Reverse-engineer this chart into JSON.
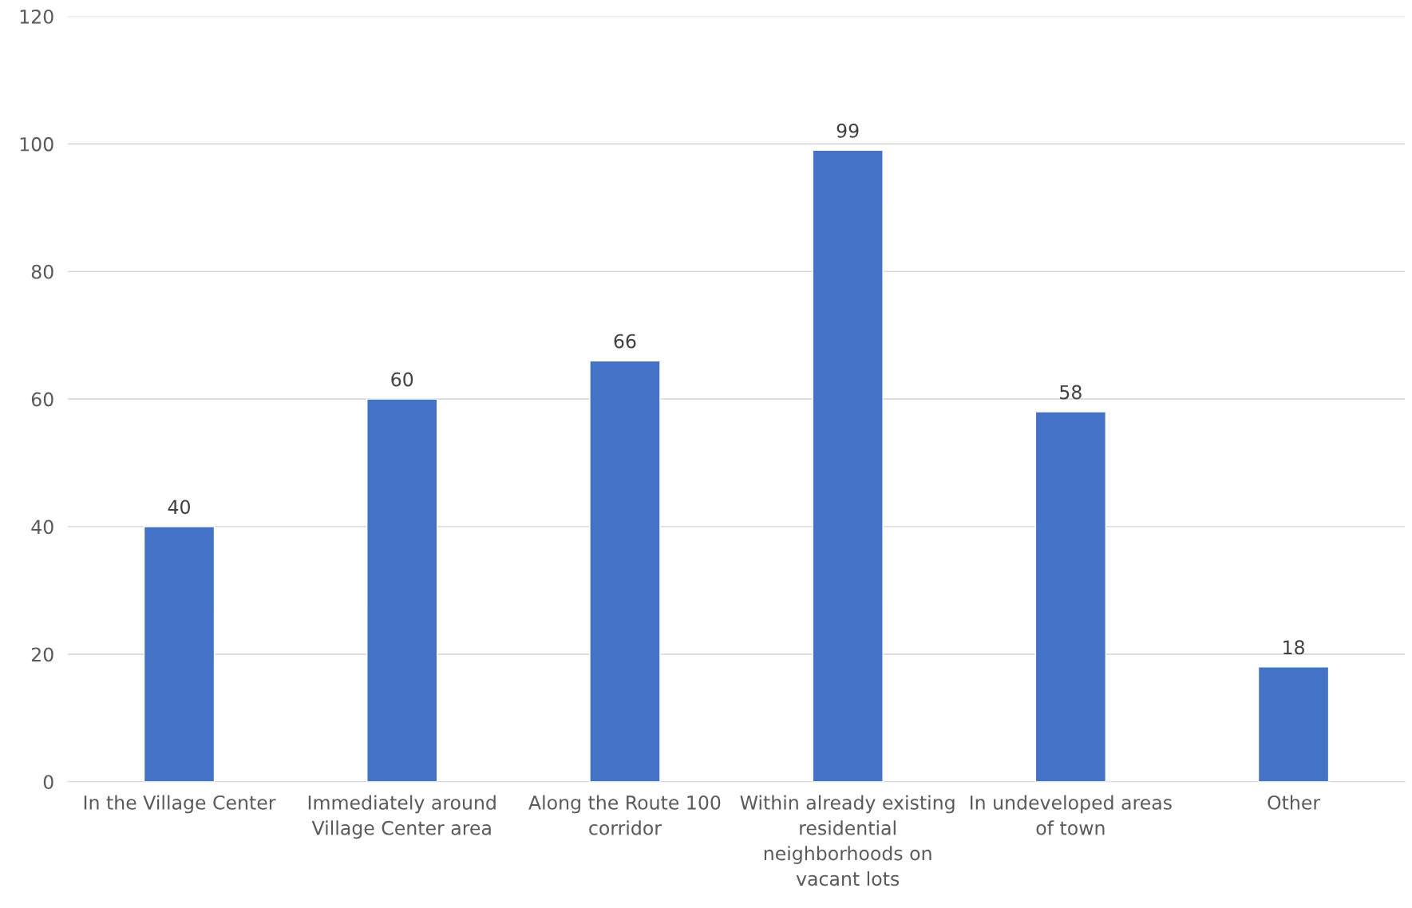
{
  "chart_data": {
    "type": "bar",
    "categories": [
      "In the Village Center",
      "Immediately around\nVillage Center area",
      "Along the Route 100\ncorridor",
      "Within already existing\nresidential\nneighborhoods on\nvacant lots",
      "In undeveloped areas\nof town",
      "Other"
    ],
    "values": [
      40,
      60,
      66,
      99,
      58,
      18
    ],
    "color": "#4472c4",
    "ylim": [
      0,
      120
    ],
    "yticks": [
      0,
      20,
      40,
      60,
      80,
      100,
      120
    ],
    "grid": "y",
    "data_labels": true
  }
}
